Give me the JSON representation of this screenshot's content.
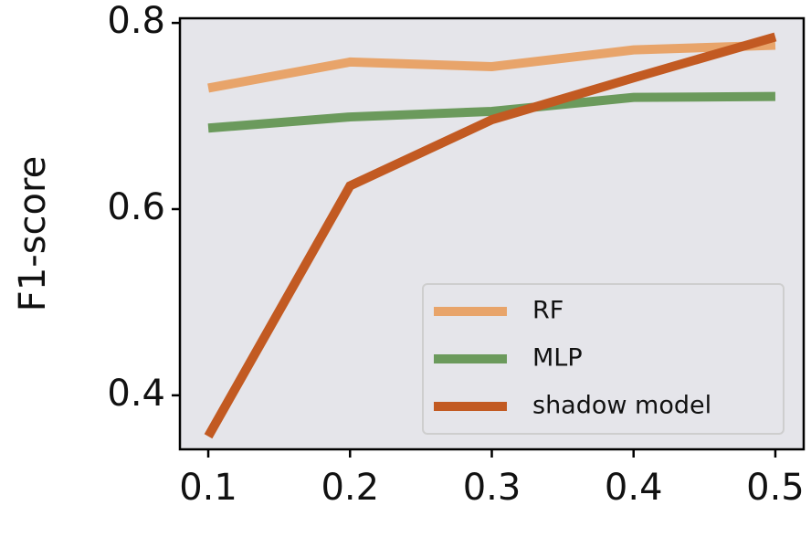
{
  "chart_data": {
    "type": "line",
    "y_label": "F1-score",
    "x": [
      0.1,
      0.2,
      0.3,
      0.4,
      0.5
    ],
    "series": [
      {
        "name": "RF",
        "color": "#e8a46a",
        "values": [
          0.73,
          0.758,
          0.753,
          0.771,
          0.776
        ]
      },
      {
        "name": "MLP",
        "color": "#6b9a5c",
        "values": [
          0.687,
          0.699,
          0.705,
          0.72,
          0.721
        ]
      },
      {
        "name": "shadow model",
        "color": "#c25a22",
        "values": [
          0.356,
          0.625,
          0.696,
          0.741,
          0.785
        ]
      }
    ],
    "xlim": [
      0.08,
      0.52
    ],
    "xticks": [
      0.1,
      0.2,
      0.3,
      0.4,
      0.5
    ],
    "ylim": [
      0.342,
      0.805
    ],
    "yticks": [
      0.4,
      0.6,
      0.8
    ],
    "legend": "lower right",
    "background": "#e5e5ea"
  }
}
